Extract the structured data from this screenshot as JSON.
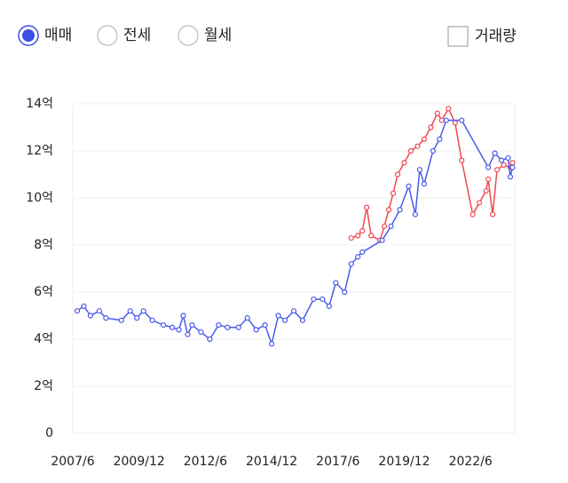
{
  "controls": {
    "radios": [
      {
        "label": "매매",
        "selected": true
      },
      {
        "label": "전세",
        "selected": false
      },
      {
        "label": "월세",
        "selected": false
      }
    ],
    "checkbox": {
      "label": "거래량",
      "checked": false
    }
  },
  "chart_data": {
    "type": "line",
    "xlim": [
      "2007/6",
      "2024/2"
    ],
    "xticks": [
      "2007/6",
      "2009/12",
      "2012/6",
      "2014/12",
      "2017/6",
      "2019/12",
      "2022/6"
    ],
    "ylim": [
      0,
      14
    ],
    "yticks": [
      0,
      {
        "value": 2,
        "label": "2억"
      },
      {
        "value": 4,
        "label": "4억"
      },
      {
        "value": 6,
        "label": "6억"
      },
      {
        "value": 8,
        "label": "8억"
      },
      {
        "value": 10,
        "label": "10억"
      },
      {
        "value": 12,
        "label": "12억"
      },
      {
        "value": 14,
        "label": "14억"
      }
    ],
    "grid": true,
    "series": [
      {
        "color": "#4a5ae8",
        "x": [
          "2007/8",
          "2007/11",
          "2008/2",
          "2008/6",
          "2008/9",
          "2009/4",
          "2009/8",
          "2009/11",
          "2010/2",
          "2010/6",
          "2010/11",
          "2011/3",
          "2011/6",
          "2011/8",
          "2011/10",
          "2011/12",
          "2012/4",
          "2012/8",
          "2012/12",
          "2013/4",
          "2013/9",
          "2014/1",
          "2014/5",
          "2014/9",
          "2014/12",
          "2015/3",
          "2015/6",
          "2015/10",
          "2016/2",
          "2016/7",
          "2016/11",
          "2017/2",
          "2017/5",
          "2017/9",
          "2017/12",
          "2018/3",
          "2018/5",
          "2019/2",
          "2019/6",
          "2019/10",
          "2020/2",
          "2020/5",
          "2020/7",
          "2020/9",
          "2021/1",
          "2021/4",
          "2021/7",
          "2022/2",
          "2023/2",
          "2023/5",
          "2023/8",
          "2023/11",
          "2023/12",
          "2024/1"
        ],
        "values": [
          5.2,
          5.4,
          5.0,
          5.2,
          4.9,
          4.8,
          5.2,
          4.9,
          5.2,
          4.8,
          4.6,
          4.5,
          4.4,
          5.0,
          4.2,
          4.6,
          4.3,
          4.0,
          4.6,
          4.5,
          4.5,
          4.9,
          4.4,
          4.6,
          3.8,
          5.0,
          4.8,
          5.2,
          4.8,
          5.7,
          5.7,
          5.4,
          6.4,
          6.0,
          7.2,
          7.5,
          7.7,
          8.2,
          8.8,
          9.5,
          10.5,
          9.3,
          11.2,
          10.6,
          12.0,
          12.5,
          13.3,
          13.3,
          11.3,
          11.9,
          11.6,
          11.7,
          10.9,
          11.3
        ]
      },
      {
        "color": "#f0474f",
        "x": [
          "2017/12",
          "2018/3",
          "2018/5",
          "2018/7",
          "2018/9",
          "2019/1",
          "2019/3",
          "2019/5",
          "2019/7",
          "2019/9",
          "2019/12",
          "2020/3",
          "2020/6",
          "2020/9",
          "2020/12",
          "2021/3",
          "2021/5",
          "2021/8",
          "2021/11",
          "2022/2",
          "2022/7",
          "2022/10",
          "2023/1",
          "2023/2",
          "2023/4",
          "2023/6",
          "2023/9",
          "2023/12",
          "2024/1"
        ],
        "values": [
          8.3,
          8.4,
          8.6,
          9.6,
          8.4,
          8.2,
          8.8,
          9.5,
          10.2,
          11.0,
          11.5,
          12.0,
          12.2,
          12.5,
          13.0,
          13.6,
          13.3,
          13.8,
          13.2,
          11.6,
          9.3,
          9.8,
          10.3,
          10.8,
          9.3,
          11.2,
          11.4,
          11.3,
          11.5
        ]
      }
    ]
  }
}
